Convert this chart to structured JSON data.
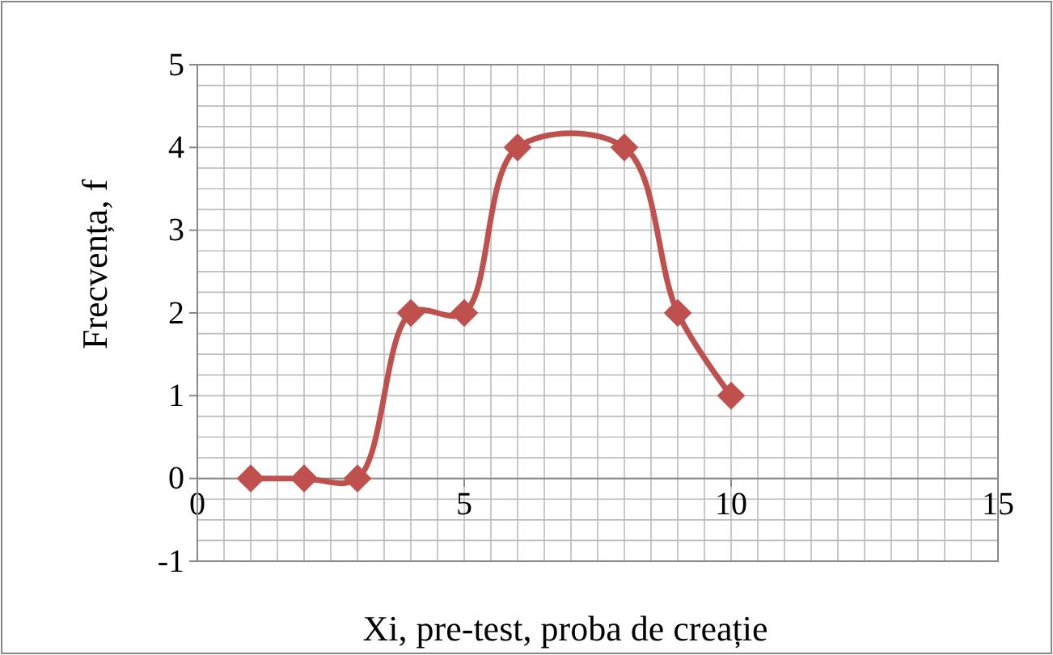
{
  "chart_data": {
    "type": "line",
    "xlabel": "Xi, pre-test, proba de creație",
    "ylabel": "Frecvența, f",
    "series": [
      {
        "color": "#c0504d",
        "x": [
          1,
          2,
          3,
          4,
          5,
          6,
          8,
          9,
          10
        ],
        "values": [
          0,
          0,
          0,
          2,
          2,
          4,
          4,
          2,
          1
        ]
      }
    ],
    "xlim": [
      0,
      15
    ],
    "xticks": [
      0,
      5,
      10,
      15
    ],
    "ylim": [
      -1,
      5
    ],
    "yticks": [
      -1,
      0,
      1,
      2,
      3,
      4,
      5
    ],
    "grid": true,
    "marker": "diamond"
  }
}
